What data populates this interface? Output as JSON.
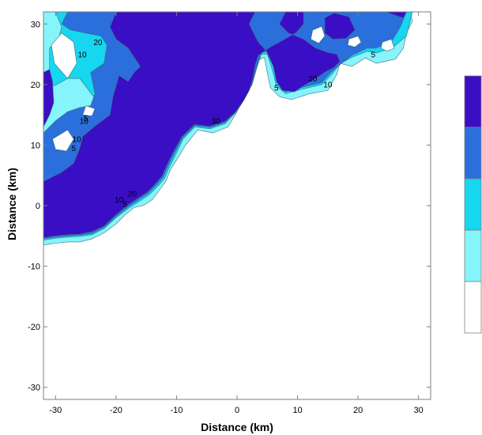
{
  "chart_data": {
    "type": "filled-contour",
    "xlabel": "Distance (km)",
    "ylabel": "Distance (km)",
    "xlim": [
      -32,
      32
    ],
    "ylim": [
      -32,
      32
    ],
    "x_ticks": [
      "-30",
      "-20",
      "-10",
      "0",
      "10",
      "20",
      "30"
    ],
    "y_ticks": [
      "-30",
      "-20",
      "-10",
      "0",
      "10",
      "20",
      "30"
    ],
    "grid": false,
    "contour_levels": [
      5,
      10,
      20,
      30
    ],
    "contour_labels": [
      {
        "text": "10",
        "x": -25.6,
        "y": 24.5
      },
      {
        "text": "20",
        "x": -23.0,
        "y": 26.5
      },
      {
        "text": "5",
        "x": -25.0,
        "y": 14.0
      },
      {
        "text": "10",
        "x": -25.3,
        "y": 13.5
      },
      {
        "text": "5",
        "x": -27.0,
        "y": 9.0
      },
      {
        "text": "10",
        "x": -26.5,
        "y": 10.5
      },
      {
        "text": "10",
        "x": -19.5,
        "y": 0.5
      },
      {
        "text": "20",
        "x": -17.3,
        "y": 1.5
      },
      {
        "text": "5",
        "x": -18.5,
        "y": -0.2
      },
      {
        "text": "30",
        "x": -3.5,
        "y": 13.5
      },
      {
        "text": "5",
        "x": 6.5,
        "y": 19.0
      },
      {
        "text": "20",
        "x": 12.5,
        "y": 20.5
      },
      {
        "text": "10",
        "x": 15.0,
        "y": 19.5
      },
      {
        "text": "5",
        "x": 22.5,
        "y": 24.5
      }
    ],
    "colorbar": {
      "colors": [
        "#3a0ec4",
        "#2a6fdc",
        "#16d6f0",
        "#86f4fb",
        "#ffffff"
      ]
    },
    "regions": [
      {
        "level": 1,
        "color": "#86f4fb",
        "points": [
          [
            -32,
            32
          ],
          [
            28.5,
            32
          ],
          [
            29,
            30.5
          ],
          [
            28,
            28.5
          ],
          [
            27.5,
            26
          ],
          [
            26.2,
            24.2
          ],
          [
            23,
            23.5
          ],
          [
            21.2,
            24.4
          ],
          [
            19,
            23
          ],
          [
            17,
            23.5
          ],
          [
            16.5,
            21.7
          ],
          [
            15,
            19
          ],
          [
            12,
            18.5
          ],
          [
            9,
            17.5
          ],
          [
            7,
            18
          ],
          [
            5.5,
            19.5
          ],
          [
            5,
            22
          ],
          [
            4.5,
            24.5
          ],
          [
            3.5,
            24
          ],
          [
            2.5,
            21.5
          ],
          [
            2,
            19.5
          ],
          [
            0.5,
            17.5
          ],
          [
            0,
            15.5
          ],
          [
            -1.5,
            13
          ],
          [
            -4,
            12
          ],
          [
            -6.5,
            12.5
          ],
          [
            -8.5,
            10
          ],
          [
            -10,
            7.5
          ],
          [
            -11,
            6
          ],
          [
            -11.8,
            4
          ],
          [
            -12.5,
            3
          ],
          [
            -14,
            1
          ],
          [
            -15.5,
            0
          ],
          [
            -17,
            -0.3
          ],
          [
            -18.5,
            -1.5
          ],
          [
            -20,
            -3
          ],
          [
            -22,
            -4.5
          ],
          [
            -24,
            -5.5
          ],
          [
            -26,
            -6
          ],
          [
            -28,
            -6
          ],
          [
            -30,
            -6.2
          ],
          [
            -32,
            -6.5
          ]
        ]
      },
      {
        "level": 2,
        "color": "#16d6f0",
        "points": [
          [
            -30,
            32
          ],
          [
            29,
            32
          ],
          [
            28.6,
            30.5
          ],
          [
            28,
            28
          ],
          [
            25.6,
            26
          ],
          [
            23,
            25.2
          ],
          [
            21.5,
            25.5
          ],
          [
            19,
            24.5
          ],
          [
            17,
            23.4
          ],
          [
            15.5,
            21.5
          ],
          [
            14,
            20
          ],
          [
            11,
            19.3
          ],
          [
            8,
            18.5
          ],
          [
            6.5,
            19.8
          ],
          [
            5.8,
            22.5
          ],
          [
            5,
            25
          ],
          [
            4,
            25
          ],
          [
            3.2,
            22.5
          ],
          [
            2.5,
            20
          ],
          [
            1.2,
            17.6
          ],
          [
            0,
            15.6
          ],
          [
            -2,
            13.5
          ],
          [
            -4.5,
            12.7
          ],
          [
            -7,
            13
          ],
          [
            -8.9,
            11
          ],
          [
            -10.2,
            8.3
          ],
          [
            -11.2,
            6.3
          ],
          [
            -12,
            4.5
          ],
          [
            -13,
            3.3
          ],
          [
            -14.5,
            1.8
          ],
          [
            -16,
            0.8
          ],
          [
            -18,
            -0.5
          ],
          [
            -20,
            -2
          ],
          [
            -22,
            -3.8
          ],
          [
            -24,
            -4.8
          ],
          [
            -26,
            -5.1
          ],
          [
            -28,
            -5.2
          ],
          [
            -30,
            -5.4
          ],
          [
            -32,
            -5.7
          ],
          [
            -32,
            7
          ],
          [
            -30,
            9
          ],
          [
            -28.5,
            9
          ],
          [
            -27.5,
            11
          ],
          [
            -26.6,
            12.8
          ],
          [
            -25.5,
            13.5
          ],
          [
            -24,
            14.8
          ],
          [
            -23,
            17
          ],
          [
            -24.7,
            19.3
          ],
          [
            -26,
            21
          ],
          [
            -28,
            21
          ],
          [
            -29.8,
            20
          ],
          [
            -31,
            19.5
          ],
          [
            -31,
            26
          ],
          [
            -29.5,
            27.5
          ],
          [
            -29,
            29.5
          ]
        ]
      },
      {
        "level": 3,
        "color": "#2a6fdc",
        "points": [
          [
            -28,
            32
          ],
          [
            28,
            32
          ],
          [
            27,
            29.5
          ],
          [
            25.5,
            27
          ],
          [
            23,
            26
          ],
          [
            21.5,
            26
          ],
          [
            19,
            24.8
          ],
          [
            17.5,
            23.7
          ],
          [
            15.5,
            22
          ],
          [
            14,
            20.3
          ],
          [
            11,
            19.6
          ],
          [
            8,
            18.8
          ],
          [
            6.8,
            20.2
          ],
          [
            6.1,
            23
          ],
          [
            5.2,
            25.5
          ],
          [
            4.1,
            25.3
          ],
          [
            3.2,
            22.8
          ],
          [
            2.5,
            20.1
          ],
          [
            1.2,
            17.8
          ],
          [
            0,
            15.8
          ],
          [
            -2,
            13.7
          ],
          [
            -4.5,
            12.9
          ],
          [
            -7,
            13.2
          ],
          [
            -9,
            11.2
          ],
          [
            -10.4,
            8.5
          ],
          [
            -11.4,
            6.5
          ],
          [
            -12.2,
            4.7
          ],
          [
            -13.2,
            3.5
          ],
          [
            -14.7,
            2
          ],
          [
            -16.2,
            1
          ],
          [
            -18,
            -0.2
          ],
          [
            -20,
            -1.8
          ],
          [
            -22,
            -3.6
          ],
          [
            -24,
            -4.6
          ],
          [
            -26,
            -4.9
          ],
          [
            -28,
            -5
          ],
          [
            -30,
            -5.2
          ],
          [
            -32,
            -5.5
          ],
          [
            -32,
            12
          ],
          [
            -30,
            14
          ],
          [
            -28,
            15.5
          ],
          [
            -26,
            16.2
          ],
          [
            -24.2,
            16.5
          ],
          [
            -23.5,
            18.5
          ],
          [
            -24.2,
            22
          ],
          [
            -22,
            23.5
          ],
          [
            -21.5,
            26.5
          ],
          [
            -22.5,
            28
          ],
          [
            -25,
            28.5
          ],
          [
            -27.5,
            29
          ],
          [
            -29,
            30
          ]
        ]
      },
      {
        "level": 4,
        "color": "#3a0ec4",
        "points": [
          [
            -20,
            32
          ],
          [
            1,
            32
          ],
          [
            3,
            32
          ],
          [
            2,
            30
          ],
          [
            3.5,
            27
          ],
          [
            4.8,
            25.6
          ],
          [
            6,
            23
          ],
          [
            6.5,
            20.5
          ],
          [
            7.5,
            19
          ],
          [
            9.5,
            18.8
          ],
          [
            11,
            19.8
          ],
          [
            13,
            21
          ],
          [
            14.8,
            22.2
          ],
          [
            16,
            22.8
          ],
          [
            17,
            23.8
          ],
          [
            16.5,
            25
          ],
          [
            15,
            25.3
          ],
          [
            13,
            26
          ],
          [
            11,
            27.5
          ],
          [
            8.5,
            28.5
          ],
          [
            7,
            30
          ],
          [
            8,
            32
          ],
          [
            11,
            32
          ],
          [
            11,
            30
          ],
          [
            9.8,
            28.6
          ],
          [
            8.4,
            27.8
          ],
          [
            7,
            27
          ],
          [
            5.5,
            26.2
          ],
          [
            4.5,
            25.5
          ],
          [
            3.5,
            24.8
          ],
          [
            3,
            23.2
          ],
          [
            2.6,
            21
          ],
          [
            2,
            19
          ],
          [
            1,
            17.2
          ],
          [
            -0.3,
            15.4
          ],
          [
            -2,
            13.9
          ],
          [
            -4.5,
            13.1
          ],
          [
            -7,
            13.4
          ],
          [
            -9.1,
            11.4
          ],
          [
            -10.6,
            8.7
          ],
          [
            -11.6,
            6.7
          ],
          [
            -12.4,
            4.9
          ],
          [
            -13.4,
            3.7
          ],
          [
            -14.9,
            2.2
          ],
          [
            -16.4,
            1.2
          ],
          [
            -18.2,
            0
          ],
          [
            -20,
            -1.5
          ],
          [
            -22,
            -3.4
          ],
          [
            -24,
            -4.3
          ],
          [
            -26,
            -4.7
          ],
          [
            -28,
            -4.8
          ],
          [
            -30,
            -5
          ],
          [
            -32,
            -5.3
          ],
          [
            -32,
            4
          ],
          [
            -29,
            5.5
          ],
          [
            -27,
            7
          ],
          [
            -26,
            9.5
          ],
          [
            -25.5,
            11.5
          ],
          [
            -23,
            13.5
          ],
          [
            -21,
            15
          ],
          [
            -20.5,
            18
          ],
          [
            -19.5,
            21.5
          ],
          [
            -18,
            20.5
          ],
          [
            -17,
            22
          ],
          [
            -16,
            23
          ],
          [
            -18,
            26
          ],
          [
            -20,
            27.5
          ],
          [
            -21,
            29.5
          ]
        ]
      },
      {
        "level": 4,
        "color": "#3a0ec4",
        "points": [
          [
            -32,
            22
          ],
          [
            -31,
            22.5
          ],
          [
            -30.5,
            20.5
          ],
          [
            -30.3,
            17
          ],
          [
            -31,
            15
          ],
          [
            -32,
            13
          ]
        ]
      },
      {
        "level": 4,
        "color": "#3a0ec4",
        "points": [
          [
            14.5,
            31
          ],
          [
            16,
            31.8
          ],
          [
            18.5,
            31.2
          ],
          [
            19.5,
            29
          ],
          [
            18,
            27.6
          ],
          [
            15.8,
            27.5
          ],
          [
            14.5,
            28.5
          ]
        ]
      },
      {
        "level": 4,
        "color": "#3a0ec4",
        "points": [
          [
            24.5,
            32
          ],
          [
            28,
            32
          ],
          [
            27.5,
            31
          ]
        ]
      },
      {
        "level": 0,
        "color": "#ffffff",
        "points": [
          [
            -28,
            21
          ],
          [
            -26.5,
            23.5
          ],
          [
            -27,
            27
          ],
          [
            -29,
            28.5
          ],
          [
            -30.7,
            26.5
          ],
          [
            -30.2,
            23.5
          ]
        ]
      },
      {
        "level": 0,
        "color": "#ffffff",
        "points": [
          [
            -30.5,
            11
          ],
          [
            -28,
            12.5
          ],
          [
            -27,
            11
          ],
          [
            -28.2,
            9
          ],
          [
            -30,
            9.3
          ]
        ]
      },
      {
        "level": 0,
        "color": "#ffffff",
        "points": [
          [
            -25,
            16.5
          ],
          [
            -23.5,
            16
          ],
          [
            -24,
            14.8
          ],
          [
            -25.5,
            15
          ]
        ]
      },
      {
        "level": 0,
        "color": "#ffffff",
        "points": [
          [
            12.5,
            29
          ],
          [
            14,
            29.6
          ],
          [
            14.5,
            28
          ],
          [
            13.5,
            26.8
          ],
          [
            12.2,
            27.5
          ]
        ]
      },
      {
        "level": 0,
        "color": "#ffffff",
        "points": [
          [
            18.5,
            27.5
          ],
          [
            20,
            28
          ],
          [
            20.5,
            27
          ],
          [
            19.5,
            26.2
          ],
          [
            18.3,
            26.5
          ]
        ]
      },
      {
        "level": 0,
        "color": "#ffffff",
        "points": [
          [
            24,
            27
          ],
          [
            25.5,
            27.5
          ],
          [
            26,
            26
          ],
          [
            24.8,
            25.5
          ],
          [
            23.8,
            26
          ]
        ]
      }
    ]
  }
}
